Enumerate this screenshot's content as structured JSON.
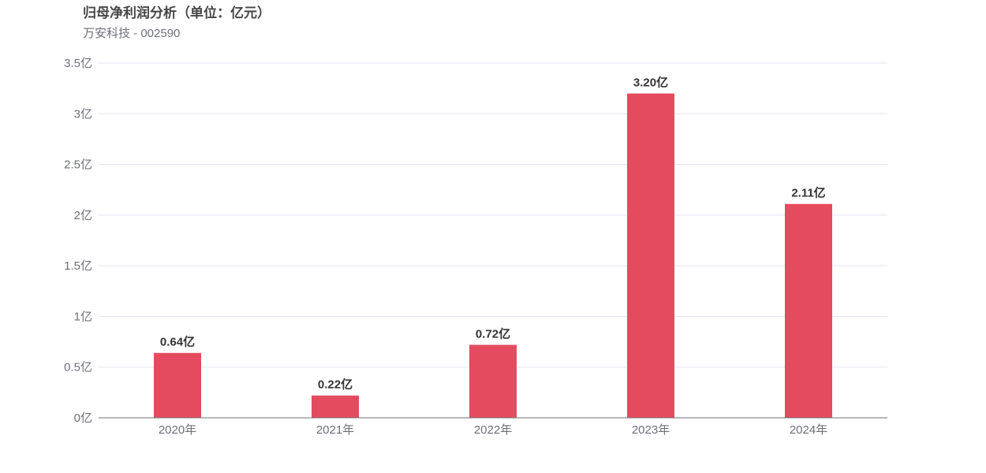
{
  "header": {
    "title": "归母净利润分析（单位：亿元）",
    "subtitle": "万安科技 - 002590"
  },
  "colors": {
    "bar": "#e54b5e",
    "grid": "#e3e3ef",
    "axis": "#6e7079"
  },
  "chart_data": {
    "type": "bar",
    "title": "归母净利润分析（单位：亿元）",
    "subtitle": "万安科技 - 002590",
    "categories": [
      "2020年",
      "2021年",
      "2022年",
      "2023年",
      "2024年"
    ],
    "values": [
      0.64,
      0.22,
      0.72,
      3.2,
      2.11
    ],
    "data_labels": [
      "0.64亿",
      "0.22亿",
      "0.72亿",
      "3.20亿",
      "2.11亿"
    ],
    "y_ticks": [
      0,
      0.5,
      1,
      1.5,
      2,
      2.5,
      3,
      3.5
    ],
    "y_tick_labels": [
      "0亿",
      "0.5亿",
      "1亿",
      "1.5亿",
      "2亿",
      "2.5亿",
      "3亿",
      "3.5亿"
    ],
    "ylim": [
      0,
      3.5
    ],
    "xlabel": "",
    "ylabel": "",
    "grid": true,
    "legend": "none"
  }
}
